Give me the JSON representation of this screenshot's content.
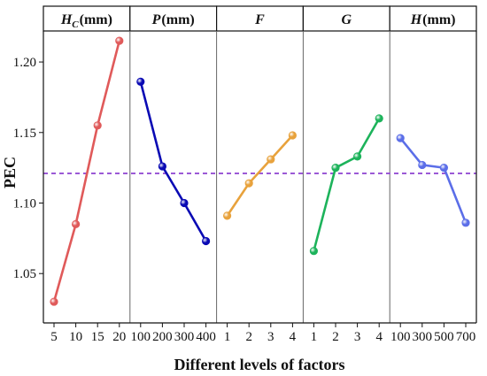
{
  "chart_data": {
    "type": "line",
    "ylabel": "PEC",
    "xlabel": "Different levels of factors",
    "ylim": [
      1.015,
      1.222
    ],
    "yticks": [
      1.05,
      1.1,
      1.15,
      1.2
    ],
    "ytick_labels": [
      "1.05",
      "1.10",
      "1.15",
      "1.20"
    ],
    "reference_line": {
      "value": 1.121,
      "color": "#9b59d6",
      "style": "dashed"
    },
    "panels": [
      {
        "title": "H",
        "subscript": "C",
        "unit": "(mm)",
        "color": "#e05a5a",
        "categories": [
          "5",
          "10",
          "15",
          "20"
        ],
        "values": [
          1.03,
          1.085,
          1.155,
          1.215
        ]
      },
      {
        "title": "P",
        "subscript": "",
        "unit": "(mm)",
        "color": "#0a0ab4",
        "categories": [
          "100",
          "200",
          "300",
          "400"
        ],
        "values": [
          1.186,
          1.126,
          1.1,
          1.073
        ]
      },
      {
        "title": "F",
        "subscript": "",
        "unit": "",
        "color": "#e8a23c",
        "categories": [
          "1",
          "2",
          "3",
          "4"
        ],
        "values": [
          1.091,
          1.114,
          1.131,
          1.148
        ]
      },
      {
        "title": "G",
        "subscript": "",
        "unit": "",
        "color": "#1db35b",
        "categories": [
          "1",
          "2",
          "3",
          "4"
        ],
        "values": [
          1.066,
          1.125,
          1.133,
          1.16
        ]
      },
      {
        "title": "H",
        "subscript": "",
        "unit": "(mm)",
        "color": "#5b6ee8",
        "categories": [
          "100",
          "300",
          "500",
          "700"
        ],
        "values": [
          1.146,
          1.127,
          1.125,
          1.086
        ]
      }
    ]
  }
}
